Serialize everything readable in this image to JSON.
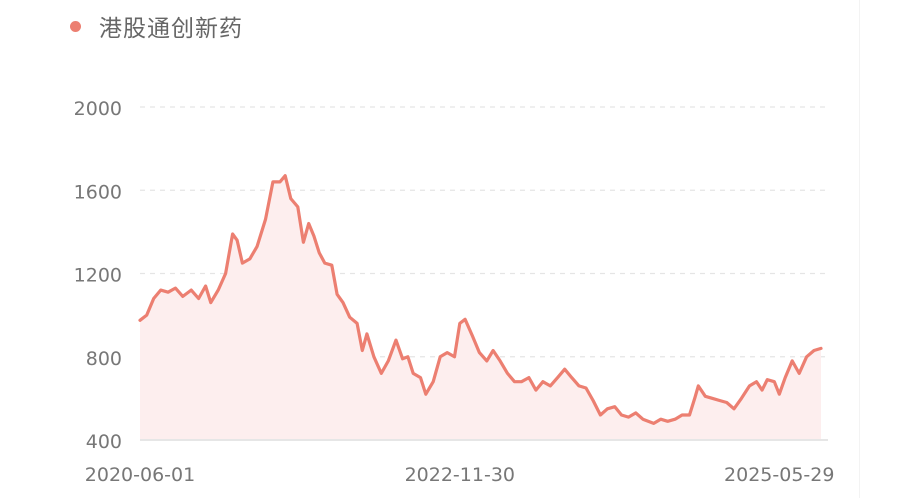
{
  "chart_data": {
    "type": "area",
    "legend": "港股通创新药",
    "x_ticks": [
      "2020-06-01",
      "2022-11-30",
      "2025-05-29"
    ],
    "y_ticks": [
      400,
      800,
      1200,
      1600,
      2000
    ],
    "ylim": [
      400,
      2000
    ],
    "xlim": [
      "2020-06-01",
      "2025-10-15"
    ],
    "grid": "horizontal dashed",
    "legend_position": "top-left",
    "colors": {
      "line": "#ec7f71",
      "fill": "#fdeeee",
      "axis": "#e6e6e6",
      "grid": "#e5e5e5",
      "text": "#777777"
    },
    "series": [
      {
        "values": [
          [
            "2020-06-01",
            975
          ],
          [
            "2020-06-20",
            1000
          ],
          [
            "2020-07-10",
            1080
          ],
          [
            "2020-07-30",
            1120
          ],
          [
            "2020-08-20",
            1110
          ],
          [
            "2020-09-10",
            1130
          ],
          [
            "2020-10-01",
            1090
          ],
          [
            "2020-10-25",
            1120
          ],
          [
            "2020-11-15",
            1080
          ],
          [
            "2020-12-05",
            1140
          ],
          [
            "2020-12-20",
            1060
          ],
          [
            "2021-01-10",
            1120
          ],
          [
            "2021-01-31",
            1200
          ],
          [
            "2021-02-20",
            1390
          ],
          [
            "2021-03-05",
            1360
          ],
          [
            "2021-03-20",
            1250
          ],
          [
            "2021-04-10",
            1270
          ],
          [
            "2021-05-01",
            1330
          ],
          [
            "2021-05-25",
            1460
          ],
          [
            "2021-06-15",
            1640
          ],
          [
            "2021-07-05",
            1640
          ],
          [
            "2021-07-20",
            1670
          ],
          [
            "2021-08-05",
            1560
          ],
          [
            "2021-08-25",
            1520
          ],
          [
            "2021-09-10",
            1350
          ],
          [
            "2021-09-25",
            1440
          ],
          [
            "2021-10-10",
            1380
          ],
          [
            "2021-10-25",
            1300
          ],
          [
            "2021-11-10",
            1250
          ],
          [
            "2021-11-30",
            1240
          ],
          [
            "2021-12-15",
            1100
          ],
          [
            "2022-01-01",
            1060
          ],
          [
            "2022-01-20",
            990
          ],
          [
            "2022-02-10",
            960
          ],
          [
            "2022-02-25",
            830
          ],
          [
            "2022-03-10",
            910
          ],
          [
            "2022-03-30",
            800
          ],
          [
            "2022-04-20",
            720
          ],
          [
            "2022-05-10",
            780
          ],
          [
            "2022-06-01",
            880
          ],
          [
            "2022-06-20",
            790
          ],
          [
            "2022-07-05",
            800
          ],
          [
            "2022-07-20",
            720
          ],
          [
            "2022-08-10",
            700
          ],
          [
            "2022-08-25",
            620
          ],
          [
            "2022-09-15",
            680
          ],
          [
            "2022-10-05",
            800
          ],
          [
            "2022-10-25",
            820
          ],
          [
            "2022-11-15",
            800
          ],
          [
            "2022-11-30",
            960
          ],
          [
            "2022-12-15",
            980
          ],
          [
            "2023-01-05",
            900
          ],
          [
            "2023-01-25",
            820
          ],
          [
            "2023-02-15",
            780
          ],
          [
            "2023-03-05",
            830
          ],
          [
            "2023-03-25",
            780
          ],
          [
            "2023-04-15",
            720
          ],
          [
            "2023-05-05",
            680
          ],
          [
            "2023-05-25",
            680
          ],
          [
            "2023-06-15",
            700
          ],
          [
            "2023-07-05",
            640
          ],
          [
            "2023-07-25",
            680
          ],
          [
            "2023-08-15",
            660
          ],
          [
            "2023-09-05",
            700
          ],
          [
            "2023-09-25",
            740
          ],
          [
            "2023-10-15",
            700
          ],
          [
            "2023-11-05",
            660
          ],
          [
            "2023-11-25",
            650
          ],
          [
            "2023-12-15",
            590
          ],
          [
            "2024-01-05",
            520
          ],
          [
            "2024-01-25",
            550
          ],
          [
            "2024-02-15",
            560
          ],
          [
            "2024-03-05",
            520
          ],
          [
            "2024-03-25",
            510
          ],
          [
            "2024-04-15",
            530
          ],
          [
            "2024-05-05",
            500
          ],
          [
            "2024-06-05",
            480
          ],
          [
            "2024-06-25",
            500
          ],
          [
            "2024-07-15",
            490
          ],
          [
            "2024-08-05",
            500
          ],
          [
            "2024-08-25",
            520
          ],
          [
            "2024-09-15",
            520
          ],
          [
            "2024-09-30",
            600
          ],
          [
            "2024-10-10",
            660
          ],
          [
            "2024-10-30",
            610
          ],
          [
            "2024-11-20",
            600
          ],
          [
            "2024-12-10",
            590
          ],
          [
            "2024-12-30",
            580
          ],
          [
            "2025-01-20",
            550
          ],
          [
            "2025-02-10",
            600
          ],
          [
            "2025-03-05",
            660
          ],
          [
            "2025-03-25",
            680
          ],
          [
            "2025-04-10",
            640
          ],
          [
            "2025-04-25",
            690
          ],
          [
            "2025-05-15",
            680
          ],
          [
            "2025-05-29",
            620
          ],
          [
            "2025-06-15",
            700
          ],
          [
            "2025-07-05",
            780
          ],
          [
            "2025-07-25",
            720
          ],
          [
            "2025-08-15",
            800
          ],
          [
            "2025-09-05",
            830
          ],
          [
            "2025-09-25",
            840
          ]
        ]
      }
    ]
  }
}
